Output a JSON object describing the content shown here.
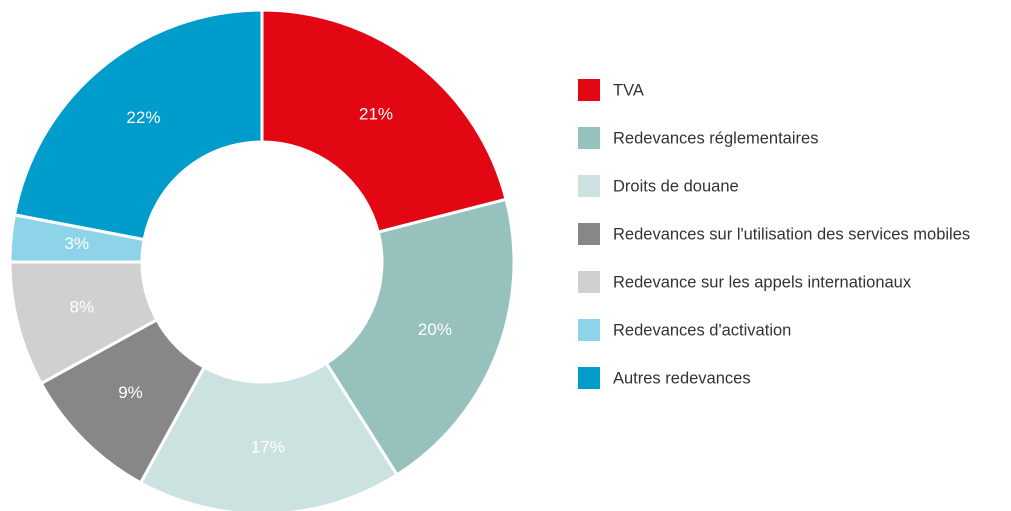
{
  "chart_data": {
    "type": "donut",
    "categories": [
      "TVA",
      "Redevances réglementaires",
      "Droits de douane",
      "Redevances sur l'utilisation des services mobiles",
      "Redevance sur les appels internationaux",
      "Redevances d'activation",
      "Autres redevances"
    ],
    "values": [
      21,
      20,
      17,
      9,
      8,
      3,
      22
    ],
    "value_labels": [
      "21%",
      "20%",
      "17%",
      "9%",
      "8%",
      "3%",
      "22%"
    ],
    "colors": [
      "#e30613",
      "#97c1bc",
      "#cce2e0",
      "#878787",
      "#d0d0d0",
      "#8dd3ea",
      "#009ccb"
    ],
    "legend": "right"
  }
}
